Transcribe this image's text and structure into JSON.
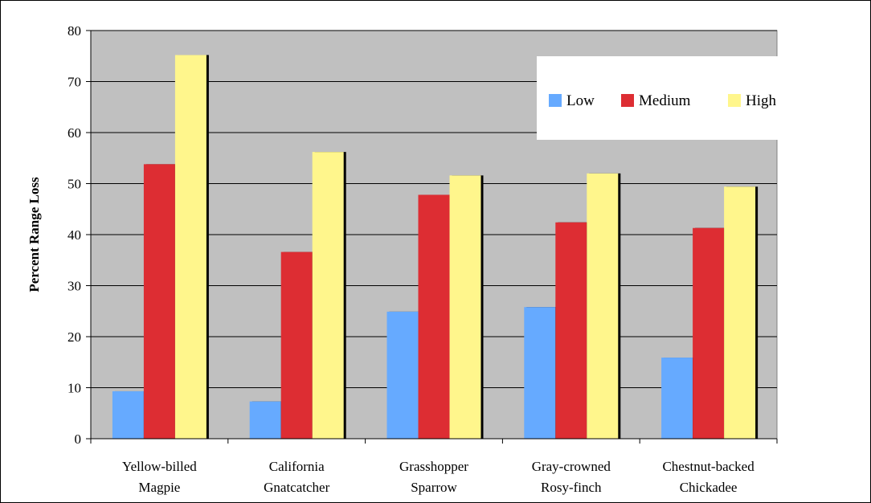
{
  "chart_data": {
    "type": "bar",
    "title": "",
    "xlabel": "",
    "ylabel": "Percent Range Loss",
    "ylim": [
      0,
      80
    ],
    "yticks": [
      0,
      10,
      20,
      30,
      40,
      50,
      60,
      70,
      80
    ],
    "grid": true,
    "legend_position": "top-right",
    "categories": [
      [
        "Yellow-billed",
        "Magpie"
      ],
      [
        "California",
        "Gnatcatcher"
      ],
      [
        "Grasshopper",
        "Sparrow"
      ],
      [
        "Gray-crowned",
        "Rosy-finch"
      ],
      [
        "Chestnut-backed",
        "Chickadee"
      ]
    ],
    "series": [
      {
        "name": "Low",
        "color": "#66aaff",
        "values": [
          9.3,
          7.3,
          24.9,
          25.8,
          15.9
        ]
      },
      {
        "name": "Medium",
        "color": "#dd2d33",
        "values": [
          53.8,
          36.6,
          47.8,
          42.4,
          41.3
        ]
      },
      {
        "name": "High",
        "color": "#fff68c",
        "values": [
          75.2,
          56.2,
          51.6,
          52.0,
          49.4
        ]
      }
    ],
    "plot_background": "#c0c0c0"
  }
}
